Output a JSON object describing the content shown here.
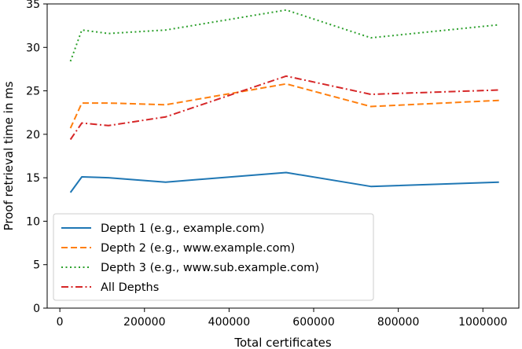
{
  "chart_data": {
    "type": "line",
    "title": "",
    "xlabel": "Total certificates",
    "ylabel": "Proof retrieval time in ms",
    "xlim": [
      -30000,
      1085000
    ],
    "ylim": [
      0,
      35
    ],
    "xticks": [
      0,
      200000,
      400000,
      600000,
      800000,
      1000000
    ],
    "xtick_labels": [
      "0",
      "200000",
      "400000",
      "600000",
      "800000",
      "1000000"
    ],
    "yticks": [
      0,
      5,
      10,
      15,
      20,
      25,
      30,
      35
    ],
    "ytick_labels": [
      "0",
      "5",
      "10",
      "15",
      "20",
      "25",
      "30",
      "35"
    ],
    "grid": false,
    "legend_position": "bottom-left",
    "x": [
      25000,
      52000,
      115000,
      250000,
      535000,
      735000,
      1038000
    ],
    "series": [
      {
        "name": "Depth 1 (e.g., example.com)",
        "color": "#1f77b4",
        "dash": "solid",
        "values": [
          13.3,
          15.1,
          15.0,
          14.5,
          15.6,
          14.0,
          14.5
        ]
      },
      {
        "name": "Depth 2 (e.g., www.example.com)",
        "color": "#ff7f0e",
        "dash": "dashed",
        "values": [
          20.7,
          23.6,
          23.6,
          23.4,
          25.8,
          23.2,
          23.9
        ]
      },
      {
        "name": "Depth 3 (e.g., www.sub.example.com)",
        "color": "#2ca02c",
        "dash": "dotted",
        "values": [
          28.4,
          32.0,
          31.6,
          32.0,
          34.3,
          31.1,
          32.6
        ]
      },
      {
        "name": "All Depths",
        "color": "#d62728",
        "dash": "dashdot",
        "values": [
          19.4,
          21.3,
          21.0,
          22.0,
          26.7,
          24.6,
          25.1
        ]
      }
    ]
  }
}
